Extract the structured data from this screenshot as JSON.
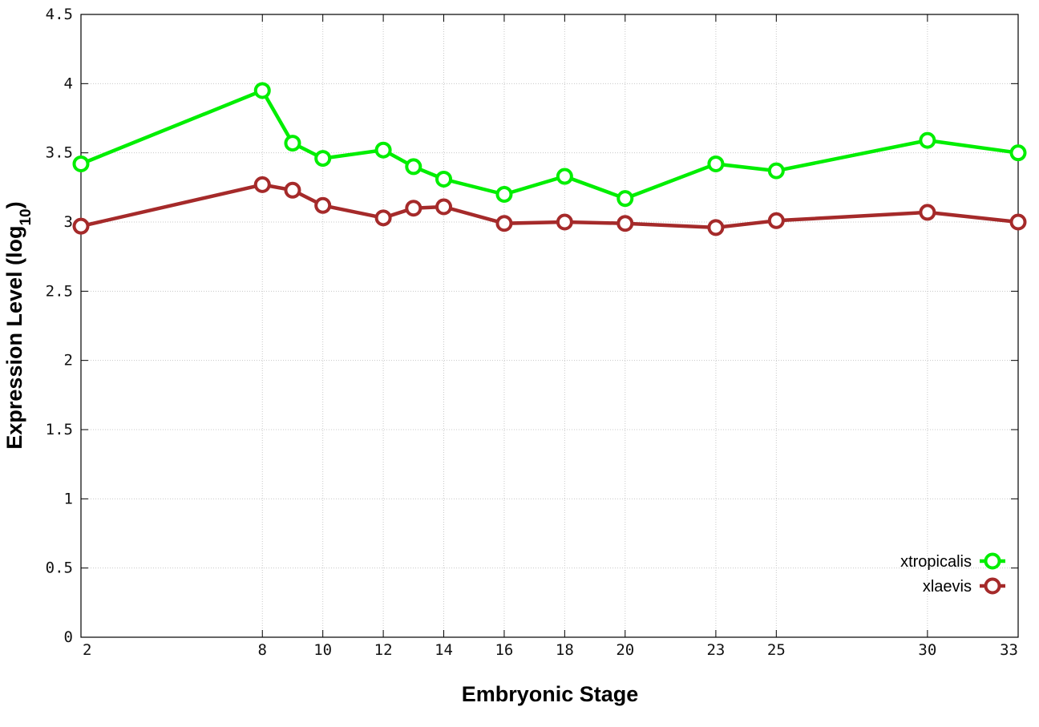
{
  "chart_data": {
    "type": "line",
    "title": "",
    "xlabel": "Embryonic Stage",
    "ylabel_main": "Expression Level (log",
    "ylabel_sub": "10",
    "ylabel_close": ")",
    "x": [
      2,
      8,
      9,
      10,
      12,
      13,
      14,
      16,
      18,
      20,
      23,
      25,
      30,
      33
    ],
    "xticks": [
      2,
      8,
      10,
      12,
      14,
      16,
      18,
      20,
      23,
      25,
      30,
      33
    ],
    "xlim": [
      2,
      33
    ],
    "ylim": [
      0,
      4.5
    ],
    "yticks": [
      0,
      0.5,
      1,
      1.5,
      2,
      2.5,
      3,
      3.5,
      4,
      4.5
    ],
    "ytick_labels": [
      "0",
      "0.5",
      "1",
      "1.5",
      "2",
      "2.5",
      "3",
      "3.5",
      "4",
      "4.5"
    ],
    "grid": true,
    "legend_position": "bottom-right",
    "series": [
      {
        "name": "xtropicalis",
        "color": "#00ee00",
        "values": [
          3.42,
          3.95,
          3.57,
          3.46,
          3.52,
          3.4,
          3.31,
          3.2,
          3.33,
          3.17,
          3.42,
          3.37,
          3.59,
          3.5
        ]
      },
      {
        "name": "xlaevis",
        "color": "#a52a2a",
        "values": [
          2.97,
          3.27,
          3.23,
          3.12,
          3.03,
          3.1,
          3.11,
          2.99,
          3.0,
          2.99,
          2.96,
          3.01,
          3.07,
          3.0
        ]
      }
    ]
  }
}
